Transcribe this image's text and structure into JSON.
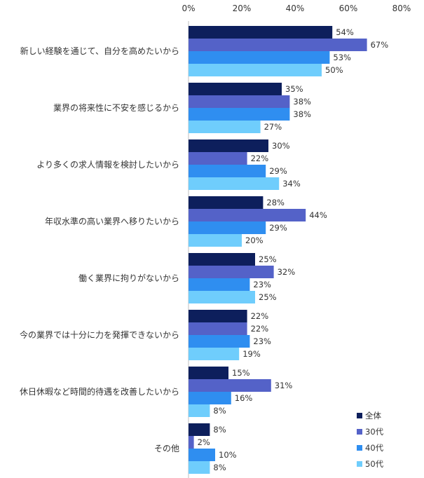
{
  "chart_data": {
    "type": "bar",
    "orientation": "horizontal",
    "categories": [
      "新しい経験を通じて、自分を高めたいから",
      "業界の将来性に不安を感じるから",
      "より多くの求人情報を検討したいから",
      "年収水準の高い業界へ移りたいから",
      "働く業界に拘りがないから",
      "今の業界では十分に力を発揮できないから",
      "休日休暇など時間的待遇を改善したいから",
      "その他"
    ],
    "series": [
      {
        "name": "全体",
        "color": "#0d1f5c",
        "values": [
          54,
          35,
          30,
          28,
          25,
          22,
          15,
          8
        ]
      },
      {
        "name": "30代",
        "color": "#5462c8",
        "values": [
          67,
          38,
          22,
          44,
          32,
          22,
          31,
          2
        ]
      },
      {
        "name": "40代",
        "color": "#2f8ef0",
        "values": [
          53,
          38,
          29,
          29,
          23,
          23,
          16,
          10
        ]
      },
      {
        "name": "50代",
        "color": "#6fcdfc",
        "values": [
          50,
          27,
          34,
          20,
          25,
          19,
          8,
          8
        ]
      }
    ],
    "xlim": [
      0,
      80
    ],
    "xticks": [
      "0%",
      "20%",
      "40%",
      "60%",
      "80%"
    ],
    "value_suffix": "%",
    "grid": false,
    "legend_position": "bottom-right"
  }
}
